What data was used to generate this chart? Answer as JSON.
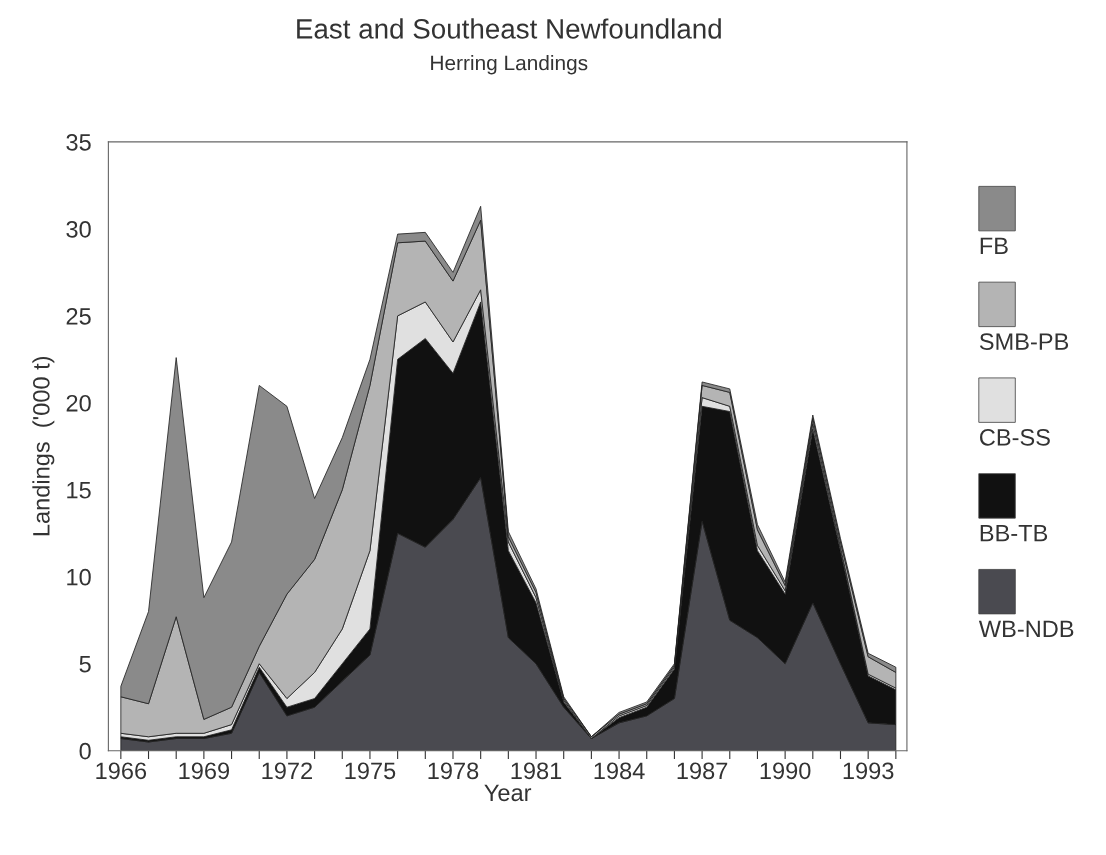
{
  "chart_data": {
    "type": "area",
    "stacked": true,
    "title": "East and Southeast Newfoundland",
    "subtitle": "Herring Landings",
    "xlabel": "Year",
    "ylabel": "Landings  ('000 t)",
    "x": [
      1966,
      1967,
      1968,
      1969,
      1970,
      1971,
      1972,
      1973,
      1974,
      1975,
      1976,
      1977,
      1978,
      1979,
      1980,
      1981,
      1982,
      1983,
      1984,
      1985,
      1986,
      1987,
      1988,
      1989,
      1990,
      1991,
      1992,
      1993,
      1994
    ],
    "series": [
      {
        "name": "WB-NDB",
        "color": "#4a4a50",
        "values": [
          0.7,
          0.5,
          0.7,
          0.7,
          1.0,
          4.5,
          2.0,
          2.5,
          4.0,
          5.5,
          12.5,
          11.7,
          13.3,
          15.7,
          6.5,
          5.0,
          2.5,
          0.7,
          1.6,
          2.0,
          3.0,
          13.2,
          7.5,
          6.5,
          5.0,
          8.5,
          5.0,
          1.6,
          1.5
        ]
      },
      {
        "name": "BB-TB",
        "color": "#111111",
        "values": [
          0.1,
          0.1,
          0.1,
          0.1,
          0.2,
          0.3,
          0.5,
          0.5,
          1.0,
          1.5,
          10.0,
          12.0,
          8.4,
          10.1,
          5.0,
          3.5,
          0.3,
          0,
          0.3,
          0.5,
          1.7,
          6.6,
          12.0,
          5.0,
          4.0,
          10.0,
          6.5,
          2.7,
          2.0
        ]
      },
      {
        "name": "CB-SS",
        "color": "#e0e0e0",
        "values": [
          0.2,
          0.2,
          0.2,
          0.2,
          0.3,
          0.2,
          0.5,
          1.5,
          2.0,
          4.5,
          2.5,
          2.1,
          1.8,
          0.7,
          0.5,
          0.3,
          0.1,
          0,
          0.1,
          0.1,
          0.1,
          0.5,
          0.3,
          0.3,
          0.2,
          0.3,
          0.2,
          0.1,
          0.1
        ]
      },
      {
        "name": "SMB-PB",
        "color": "#b4b4b4",
        "values": [
          2.1,
          1.9,
          6.7,
          0.8,
          1.0,
          1.0,
          6.0,
          6.5,
          8.0,
          9.5,
          4.2,
          3.5,
          3.5,
          4.0,
          0.3,
          0.3,
          0.1,
          0.1,
          0.1,
          0.1,
          0.1,
          0.7,
          0.8,
          0.9,
          0.3,
          0.3,
          0.3,
          1.0,
          0.9
        ]
      },
      {
        "name": "FB",
        "color": "#8a8a8a",
        "values": [
          0.6,
          5.3,
          14.9,
          7.0,
          9.5,
          15.0,
          10.8,
          3.5,
          3.0,
          1.5,
          0.5,
          0.5,
          0.5,
          0.8,
          0.3,
          0.2,
          0.1,
          0,
          0.1,
          0.1,
          0.1,
          0.2,
          0.2,
          0.3,
          0.2,
          0.2,
          0.2,
          0.2,
          0.3
        ]
      }
    ],
    "xlim": [
      1965.55,
      1994.4
    ],
    "ylim": [
      0,
      35
    ],
    "xticks": [
      1966,
      {
        "value": 1967,
        "label": null
      },
      {
        "value": 1968,
        "label": null
      },
      1969,
      {
        "value": 1970,
        "label": null
      },
      {
        "value": 1971,
        "label": null
      },
      1972,
      {
        "value": 1973,
        "label": null
      },
      {
        "value": 1974,
        "label": null
      },
      1975,
      {
        "value": 1976,
        "label": null
      },
      {
        "value": 1977,
        "label": null
      },
      1978,
      {
        "value": 1979,
        "label": null
      },
      {
        "value": 1980,
        "label": null
      },
      1981,
      {
        "value": 1982,
        "label": null
      },
      {
        "value": 1983,
        "label": null
      },
      1984,
      {
        "value": 1985,
        "label": null
      },
      {
        "value": 1986,
        "label": null
      },
      1987,
      {
        "value": 1988,
        "label": null
      },
      {
        "value": 1989,
        "label": null
      },
      1990,
      {
        "value": 1991,
        "label": null
      },
      {
        "value": 1992,
        "label": null
      },
      1993,
      {
        "value": 1994,
        "label": null
      }
    ],
    "yticks": [
      0,
      5,
      10,
      15,
      20,
      25,
      30,
      35
    ],
    "grid": false,
    "legend": "right"
  }
}
